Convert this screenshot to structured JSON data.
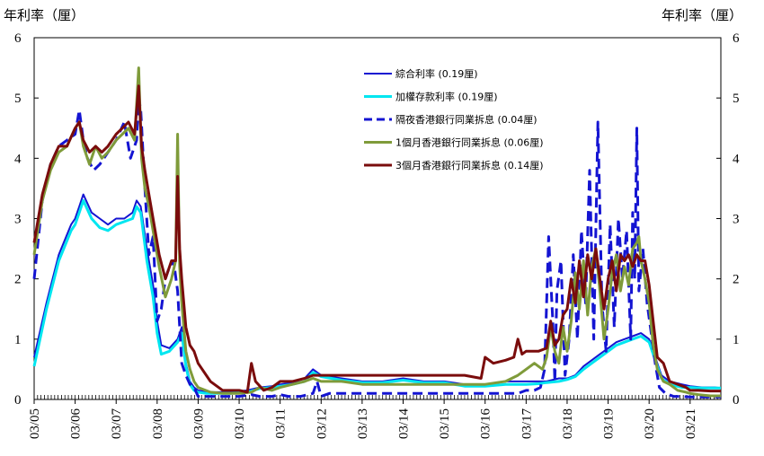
{
  "chart_data": {
    "type": "line",
    "ylabel_left": "年利率（厘）",
    "ylabel_right": "年利率（厘）",
    "ylim": [
      0,
      6
    ],
    "yticks": [
      "0",
      "1",
      "2",
      "3",
      "4",
      "5",
      "6"
    ],
    "x_range": [
      2005.0,
      2021.75
    ],
    "xticks": [
      {
        "label": "03/05",
        "x": 2005.0
      },
      {
        "label": "03/06",
        "x": 2006.0
      },
      {
        "label": "03/07",
        "x": 2007.0
      },
      {
        "label": "03/08",
        "x": 2008.0
      },
      {
        "label": "03/09",
        "x": 2009.0
      },
      {
        "label": "03/10",
        "x": 2010.0
      },
      {
        "label": "03/11",
        "x": 2011.0
      },
      {
        "label": "03/12",
        "x": 2012.0
      },
      {
        "label": "03/13",
        "x": 2013.0
      },
      {
        "label": "03/14",
        "x": 2014.0
      },
      {
        "label": "03/15",
        "x": 2015.0
      },
      {
        "label": "03/16",
        "x": 2016.0
      },
      {
        "label": "03/17",
        "x": 2017.0
      },
      {
        "label": "03/18",
        "x": 2018.0
      },
      {
        "label": "03/19",
        "x": 2019.0
      },
      {
        "label": "03/20",
        "x": 2020.0
      },
      {
        "label": "03/21",
        "x": 2021.0
      }
    ],
    "series": [
      {
        "name": "綜合利率 (0.19厘)",
        "color": "#1414d2",
        "dash": "",
        "width": 2,
        "x": [
          2005.0,
          2005.3,
          2005.6,
          2005.9,
          2006.0,
          2006.1,
          2006.2,
          2006.4,
          2006.6,
          2006.8,
          2007.0,
          2007.2,
          2007.4,
          2007.5,
          2007.6,
          2007.75,
          2007.9,
          2008.0,
          2008.1,
          2008.3,
          2008.5,
          2008.6,
          2008.7,
          2008.8,
          2008.9,
          2009.0,
          2009.2,
          2009.5,
          2009.8,
          2010.2,
          2010.5,
          2010.8,
          2011.0,
          2011.3,
          2011.6,
          2011.8,
          2012.0,
          2012.5,
          2013.0,
          2013.5,
          2014.0,
          2014.5,
          2015.0,
          2015.5,
          2016.0,
          2016.5,
          2017.0,
          2017.3,
          2017.5,
          2017.8,
          2018.0,
          2018.2,
          2018.4,
          2018.6,
          2018.8,
          2019.0,
          2019.2,
          2019.4,
          2019.6,
          2019.8,
          2020.0,
          2020.15,
          2020.3,
          2020.5,
          2020.8,
          2021.0,
          2021.3,
          2021.6,
          2021.75
        ],
        "values": [
          0.7,
          1.6,
          2.4,
          2.9,
          3.0,
          3.2,
          3.4,
          3.1,
          3.0,
          2.9,
          3.0,
          3.0,
          3.1,
          3.3,
          3.2,
          2.5,
          1.9,
          1.3,
          0.9,
          0.85,
          1.0,
          1.2,
          0.6,
          0.3,
          0.2,
          0.15,
          0.12,
          0.12,
          0.12,
          0.15,
          0.2,
          0.22,
          0.25,
          0.28,
          0.35,
          0.5,
          0.4,
          0.35,
          0.3,
          0.3,
          0.35,
          0.3,
          0.3,
          0.25,
          0.25,
          0.3,
          0.3,
          0.3,
          0.3,
          0.35,
          0.35,
          0.4,
          0.55,
          0.65,
          0.75,
          0.85,
          0.95,
          1.0,
          1.05,
          1.1,
          1.0,
          0.7,
          0.4,
          0.3,
          0.25,
          0.22,
          0.2,
          0.2,
          0.19
        ]
      },
      {
        "name": "加權存款利率 (0.19厘)",
        "color": "#00e6f0",
        "dash": "",
        "width": 3,
        "x": [
          2005.0,
          2005.3,
          2005.6,
          2005.9,
          2006.0,
          2006.1,
          2006.2,
          2006.4,
          2006.6,
          2006.8,
          2007.0,
          2007.2,
          2007.4,
          2007.5,
          2007.6,
          2007.75,
          2007.9,
          2008.0,
          2008.1,
          2008.3,
          2008.5,
          2008.6,
          2008.7,
          2008.8,
          2008.9,
          2009.0,
          2009.2,
          2009.5,
          2009.8,
          2010.2,
          2010.5,
          2010.8,
          2011.0,
          2011.3,
          2011.6,
          2011.8,
          2012.0,
          2012.5,
          2013.0,
          2013.5,
          2014.0,
          2014.5,
          2015.0,
          2015.5,
          2016.0,
          2016.5,
          2017.0,
          2017.3,
          2017.5,
          2017.8,
          2018.0,
          2018.2,
          2018.4,
          2018.6,
          2018.8,
          2019.0,
          2019.2,
          2019.4,
          2019.6,
          2019.8,
          2020.0,
          2020.15,
          2020.3,
          2020.5,
          2020.8,
          2021.0,
          2021.3,
          2021.6,
          2021.75
        ],
        "values": [
          0.55,
          1.5,
          2.3,
          2.8,
          2.9,
          3.1,
          3.3,
          3.0,
          2.85,
          2.8,
          2.9,
          2.95,
          3.0,
          3.2,
          3.1,
          2.3,
          1.7,
          1.1,
          0.75,
          0.8,
          0.95,
          1.1,
          0.55,
          0.25,
          0.15,
          0.12,
          0.1,
          0.1,
          0.1,
          0.12,
          0.18,
          0.2,
          0.22,
          0.25,
          0.3,
          0.45,
          0.38,
          0.32,
          0.28,
          0.28,
          0.32,
          0.28,
          0.28,
          0.22,
          0.22,
          0.25,
          0.25,
          0.26,
          0.28,
          0.3,
          0.33,
          0.38,
          0.5,
          0.6,
          0.7,
          0.8,
          0.9,
          0.95,
          1.0,
          1.05,
          0.95,
          0.65,
          0.35,
          0.25,
          0.2,
          0.2,
          0.19,
          0.19,
          0.19
        ]
      },
      {
        "name": "隔夜香港銀行同業拆息 (0.04厘)",
        "color": "#1414d2",
        "dash": "11,6",
        "width": 3,
        "x": [
          2005.0,
          2005.2,
          2005.4,
          2005.6,
          2005.8,
          2006.0,
          2006.1,
          2006.2,
          2006.3,
          2006.45,
          2006.6,
          2006.8,
          2007.0,
          2007.2,
          2007.35,
          2007.5,
          2007.55,
          2007.6,
          2007.7,
          2007.8,
          2007.9,
          2008.0,
          2008.1,
          2008.2,
          2008.3,
          2008.4,
          2008.5,
          2008.55,
          2008.6,
          2008.7,
          2008.8,
          2008.9,
          2009.0,
          2009.3,
          2009.6,
          2010.0,
          2010.3,
          2010.5,
          2010.8,
          2011.0,
          2011.2,
          2011.5,
          2011.8,
          2011.9,
          2012.0,
          2012.2,
          2012.5,
          2013.0,
          2013.5,
          2014.0,
          2014.5,
          2015.0,
          2015.5,
          2016.0,
          2016.4,
          2016.6,
          2016.8,
          2017.0,
          2017.2,
          2017.35,
          2017.45,
          2017.55,
          2017.65,
          2017.7,
          2017.75,
          2017.85,
          2017.95,
          2018.05,
          2018.15,
          2018.25,
          2018.35,
          2018.45,
          2018.55,
          2018.65,
          2018.75,
          2018.85,
          2018.95,
          2019.05,
          2019.15,
          2019.25,
          2019.35,
          2019.45,
          2019.55,
          2019.6,
          2019.65,
          2019.7,
          2019.75,
          2019.85,
          2019.95,
          2020.05,
          2020.15,
          2020.25,
          2020.4,
          2020.6,
          2020.8,
          2021.0,
          2021.3,
          2021.6,
          2021.75
        ],
        "values": [
          2.0,
          3.3,
          3.9,
          4.2,
          4.3,
          4.4,
          4.8,
          4.3,
          4.0,
          3.8,
          3.9,
          4.1,
          4.3,
          4.6,
          4.0,
          4.3,
          5.0,
          4.8,
          3.5,
          2.4,
          2.7,
          1.3,
          1.5,
          2.0,
          2.2,
          2.3,
          1.8,
          1.2,
          0.6,
          0.4,
          0.25,
          0.2,
          0.05,
          0.05,
          0.05,
          0.05,
          0.08,
          0.05,
          0.05,
          0.08,
          0.05,
          0.05,
          0.1,
          0.3,
          0.05,
          0.1,
          0.1,
          0.1,
          0.1,
          0.1,
          0.1,
          0.1,
          0.1,
          0.1,
          0.1,
          0.1,
          0.1,
          0.15,
          0.15,
          0.2,
          0.5,
          2.7,
          1.3,
          0.3,
          1.8,
          2.3,
          0.4,
          1.0,
          2.4,
          1.0,
          2.8,
          1.6,
          3.8,
          1.0,
          4.6,
          1.6,
          0.8,
          2.9,
          1.2,
          3.0,
          2.0,
          2.8,
          1.0,
          3.1,
          2.0,
          4.5,
          1.8,
          2.5,
          1.6,
          1.1,
          0.6,
          0.2,
          0.1,
          0.05,
          0.05,
          0.04,
          0.04,
          0.04,
          0.04
        ]
      },
      {
        "name": "1個月香港銀行同業拆息 (0.06厘)",
        "color": "#7f9b3a",
        "dash": "",
        "width": 3,
        "x": [
          2005.0,
          2005.2,
          2005.4,
          2005.6,
          2005.8,
          2006.0,
          2006.1,
          2006.2,
          2006.35,
          2006.5,
          2006.65,
          2006.8,
          2007.0,
          2007.15,
          2007.3,
          2007.45,
          2007.55,
          2007.62,
          2007.7,
          2007.8,
          2007.95,
          2008.05,
          2008.2,
          2008.35,
          2008.45,
          2008.5,
          2008.55,
          2008.6,
          2008.7,
          2008.8,
          2008.9,
          2009.0,
          2009.3,
          2009.6,
          2010.0,
          2010.3,
          2010.5,
          2010.8,
          2011.0,
          2011.3,
          2011.6,
          2011.8,
          2012.0,
          2012.5,
          2013.0,
          2013.5,
          2014.0,
          2014.5,
          2015.0,
          2015.5,
          2016.0,
          2016.5,
          2016.8,
          2017.0,
          2017.2,
          2017.4,
          2017.5,
          2017.6,
          2017.7,
          2017.8,
          2017.9,
          2018.0,
          2018.1,
          2018.2,
          2018.3,
          2018.4,
          2018.5,
          2018.6,
          2018.7,
          2018.8,
          2018.9,
          2019.0,
          2019.1,
          2019.2,
          2019.3,
          2019.4,
          2019.5,
          2019.6,
          2019.7,
          2019.75,
          2019.8,
          2019.9,
          2020.0,
          2020.1,
          2020.2,
          2020.35,
          2020.5,
          2020.7,
          2020.9,
          2021.0,
          2021.2,
          2021.5,
          2021.75
        ],
        "values": [
          2.4,
          3.3,
          3.8,
          4.1,
          4.2,
          4.5,
          4.6,
          4.2,
          3.9,
          4.2,
          4.0,
          4.1,
          4.3,
          4.4,
          4.5,
          4.3,
          5.5,
          4.0,
          3.5,
          3.2,
          2.6,
          2.2,
          1.7,
          2.0,
          2.3,
          4.4,
          2.2,
          1.6,
          0.8,
          0.5,
          0.3,
          0.2,
          0.12,
          0.1,
          0.1,
          0.12,
          0.2,
          0.15,
          0.2,
          0.25,
          0.3,
          0.35,
          0.3,
          0.3,
          0.25,
          0.25,
          0.25,
          0.25,
          0.25,
          0.25,
          0.25,
          0.3,
          0.4,
          0.5,
          0.6,
          0.5,
          0.7,
          1.2,
          0.8,
          0.6,
          1.2,
          0.8,
          1.3,
          2.1,
          1.5,
          2.3,
          1.4,
          2.2,
          2.5,
          1.8,
          1.0,
          1.5,
          2.1,
          2.4,
          1.8,
          2.2,
          1.9,
          2.5,
          2.6,
          2.7,
          2.3,
          2.0,
          1.6,
          0.9,
          0.5,
          0.3,
          0.25,
          0.15,
          0.12,
          0.1,
          0.08,
          0.06,
          0.06
        ]
      },
      {
        "name": "3個月香港銀行同業拆息 (0.14厘)",
        "color": "#7a0c0c",
        "dash": "",
        "width": 3,
        "x": [
          2005.0,
          2005.2,
          2005.4,
          2005.6,
          2005.8,
          2006.0,
          2006.1,
          2006.2,
          2006.35,
          2006.5,
          2006.65,
          2006.8,
          2007.0,
          2007.15,
          2007.3,
          2007.45,
          2007.55,
          2007.62,
          2007.7,
          2007.8,
          2007.95,
          2008.05,
          2008.2,
          2008.35,
          2008.45,
          2008.5,
          2008.55,
          2008.6,
          2008.7,
          2008.8,
          2008.9,
          2009.0,
          2009.3,
          2009.6,
          2010.0,
          2010.2,
          2010.3,
          2010.4,
          2010.6,
          2010.8,
          2011.0,
          2011.3,
          2011.6,
          2011.8,
          2012.0,
          2012.5,
          2013.0,
          2013.5,
          2014.0,
          2014.5,
          2015.0,
          2015.5,
          2015.9,
          2016.0,
          2016.2,
          2016.5,
          2016.7,
          2016.8,
          2016.9,
          2017.0,
          2017.3,
          2017.5,
          2017.6,
          2017.7,
          2017.8,
          2017.9,
          2018.0,
          2018.1,
          2018.2,
          2018.3,
          2018.4,
          2018.5,
          2018.6,
          2018.7,
          2018.8,
          2018.9,
          2019.0,
          2019.1,
          2019.2,
          2019.3,
          2019.4,
          2019.5,
          2019.6,
          2019.7,
          2019.8,
          2019.9,
          2020.0,
          2020.1,
          2020.2,
          2020.35,
          2020.5,
          2020.7,
          2020.9,
          2021.0,
          2021.2,
          2021.5,
          2021.75
        ],
        "values": [
          2.6,
          3.4,
          3.9,
          4.2,
          4.2,
          4.5,
          4.6,
          4.3,
          4.1,
          4.2,
          4.1,
          4.2,
          4.4,
          4.5,
          4.6,
          4.4,
          5.2,
          4.2,
          3.8,
          3.4,
          2.8,
          2.4,
          2.0,
          2.3,
          2.3,
          3.7,
          2.5,
          2.0,
          1.2,
          0.9,
          0.8,
          0.6,
          0.3,
          0.15,
          0.15,
          0.12,
          0.6,
          0.3,
          0.15,
          0.2,
          0.3,
          0.3,
          0.35,
          0.4,
          0.4,
          0.4,
          0.4,
          0.4,
          0.4,
          0.4,
          0.4,
          0.4,
          0.35,
          0.7,
          0.6,
          0.65,
          0.7,
          1.0,
          0.75,
          0.8,
          0.8,
          0.85,
          1.3,
          0.9,
          1.0,
          1.4,
          1.5,
          2.0,
          1.6,
          2.3,
          1.7,
          2.4,
          2.0,
          2.5,
          2.0,
          1.5,
          2.0,
          2.3,
          1.8,
          2.4,
          2.3,
          2.4,
          2.2,
          2.4,
          2.3,
          2.3,
          1.9,
          1.3,
          0.7,
          0.6,
          0.3,
          0.25,
          0.2,
          0.15,
          0.15,
          0.14,
          0.14
        ]
      }
    ]
  }
}
